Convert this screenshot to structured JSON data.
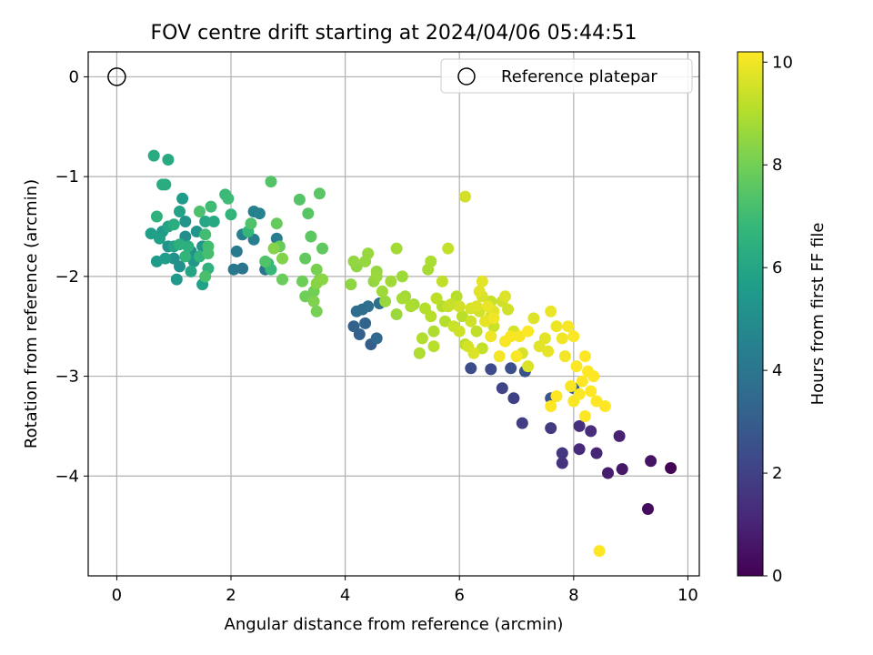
{
  "chart_data": {
    "type": "scatter",
    "title": "FOV centre drift starting at 2024/04/06 05:44:51",
    "xlabel": "Angular distance from reference (arcmin)",
    "ylabel": "Rotation from reference (arcmin)",
    "xlim": [
      -0.5,
      10.2
    ],
    "ylim": [
      -5.0,
      0.25
    ],
    "xticks": [
      0,
      2,
      4,
      6,
      8,
      10
    ],
    "yticks": [
      0,
      -1,
      -2,
      -3,
      -4
    ],
    "grid": true,
    "legend": {
      "placement": "top-right",
      "entries": [
        "Reference platepar"
      ]
    },
    "reference_point": {
      "x": 0,
      "y": 0
    },
    "colorbar": {
      "label": "Hours from first FF file",
      "colormap": "viridis",
      "min": 0,
      "max": 10.2,
      "ticks": [
        0,
        2,
        4,
        6,
        8,
        10
      ]
    },
    "colormap_stops": [
      "#440154",
      "#482878",
      "#3e4989",
      "#31688e",
      "#26828e",
      "#1f9e89",
      "#35b779",
      "#6ece58",
      "#b5de2b",
      "#fde725"
    ],
    "series": [
      {
        "name": "Reference platepar",
        "x": [
          0
        ],
        "y": [
          0
        ]
      },
      {
        "points": [
          [
            9.7,
            -3.92,
            0.1
          ],
          [
            9.3,
            -4.33,
            0.3
          ],
          [
            9.35,
            -3.85,
            0.5
          ],
          [
            8.85,
            -3.93,
            0.6
          ],
          [
            8.6,
            -3.97,
            0.8
          ],
          [
            8.8,
            -3.6,
            1.0
          ],
          [
            8.4,
            -3.77,
            1.1
          ],
          [
            8.1,
            -3.73,
            1.2
          ],
          [
            8.3,
            -3.55,
            1.3
          ],
          [
            8.1,
            -3.5,
            1.4
          ],
          [
            7.8,
            -3.87,
            1.5
          ],
          [
            7.8,
            -3.77,
            1.6
          ],
          [
            7.6,
            -3.52,
            1.8
          ],
          [
            7.1,
            -3.47,
            1.9
          ],
          [
            6.95,
            -3.22,
            2.0
          ],
          [
            6.75,
            -3.12,
            2.1
          ],
          [
            6.55,
            -2.93,
            2.3
          ],
          [
            6.2,
            -2.92,
            2.4
          ],
          [
            6.9,
            -2.92,
            2.5
          ],
          [
            7.15,
            -2.95,
            2.6
          ],
          [
            7.6,
            -3.22,
            2.7
          ],
          [
            8.0,
            -3.12,
            2.9
          ],
          [
            4.45,
            -2.68,
            3.0
          ],
          [
            4.25,
            -2.58,
            3.1
          ],
          [
            4.15,
            -2.5,
            3.2
          ],
          [
            4.35,
            -2.47,
            3.3
          ],
          [
            4.55,
            -2.62,
            3.4
          ],
          [
            4.3,
            -2.33,
            3.5
          ],
          [
            4.2,
            -2.35,
            3.6
          ],
          [
            4.6,
            -2.27,
            3.7
          ],
          [
            4.4,
            -2.3,
            3.8
          ],
          [
            2.6,
            -1.93,
            3.9
          ],
          [
            2.2,
            -1.92,
            4.0
          ],
          [
            2.05,
            -1.93,
            4.1
          ],
          [
            2.1,
            -1.75,
            4.2
          ],
          [
            2.8,
            -1.62,
            4.25
          ],
          [
            2.4,
            -1.63,
            4.35
          ],
          [
            2.2,
            -1.58,
            4.45
          ],
          [
            2.4,
            -1.35,
            4.5
          ],
          [
            2.5,
            -1.37,
            4.55
          ],
          [
            1.2,
            -1.6,
            5.0
          ],
          [
            1.3,
            -1.75,
            5.05
          ],
          [
            1.1,
            -1.9,
            5.1
          ],
          [
            1.0,
            -1.82,
            5.15
          ],
          [
            0.9,
            -1.7,
            5.2
          ],
          [
            1.2,
            -1.45,
            5.25
          ],
          [
            1.4,
            -1.55,
            5.3
          ],
          [
            1.5,
            -1.7,
            5.35
          ],
          [
            1.35,
            -1.85,
            5.4
          ],
          [
            1.05,
            -2.03,
            5.45
          ],
          [
            0.8,
            -1.55,
            5.5
          ],
          [
            0.7,
            -1.85,
            5.55
          ],
          [
            1.15,
            -1.22,
            5.6
          ],
          [
            0.85,
            -1.82,
            5.65
          ],
          [
            0.6,
            -1.57,
            5.7
          ],
          [
            0.75,
            -1.62,
            5.75
          ],
          [
            1.5,
            -2.08,
            5.8
          ],
          [
            1.1,
            -1.35,
            5.85
          ],
          [
            1.0,
            -1.7,
            5.9
          ],
          [
            0.9,
            -1.5,
            5.95
          ],
          [
            1.3,
            -1.95,
            6.0
          ],
          [
            1.55,
            -1.45,
            6.05
          ],
          [
            1.7,
            -1.45,
            6.1
          ],
          [
            0.9,
            -0.83,
            6.15
          ],
          [
            0.65,
            -0.79,
            6.2
          ],
          [
            0.8,
            -1.08,
            6.25
          ],
          [
            0.85,
            -1.08,
            6.3
          ],
          [
            1.0,
            -1.48,
            6.35
          ],
          [
            1.25,
            -1.7,
            6.4
          ],
          [
            1.1,
            -1.68,
            6.45
          ],
          [
            0.7,
            -1.4,
            6.5
          ],
          [
            1.6,
            -1.92,
            6.55
          ],
          [
            1.45,
            -1.8,
            6.6
          ],
          [
            1.2,
            -1.8,
            6.65
          ],
          [
            2.0,
            -1.38,
            6.7
          ],
          [
            2.3,
            -1.55,
            6.75
          ],
          [
            2.65,
            -1.87,
            6.8
          ],
          [
            2.7,
            -1.93,
            6.85
          ],
          [
            1.9,
            -1.18,
            6.9
          ],
          [
            1.95,
            -1.22,
            6.95
          ],
          [
            1.65,
            -1.3,
            7.0
          ],
          [
            1.55,
            -1.58,
            7.05
          ],
          [
            1.6,
            -1.7,
            7.1
          ],
          [
            1.6,
            -1.77,
            7.15
          ],
          [
            1.55,
            -2.0,
            7.2
          ],
          [
            1.45,
            -1.35,
            7.25
          ],
          [
            2.35,
            -1.47,
            7.3
          ],
          [
            2.6,
            -1.85,
            7.35
          ],
          [
            2.7,
            -1.05,
            7.4
          ],
          [
            3.2,
            -1.23,
            7.45
          ],
          [
            3.35,
            -1.37,
            7.5
          ],
          [
            3.55,
            -1.17,
            7.55
          ],
          [
            3.4,
            -1.6,
            7.6
          ],
          [
            3.6,
            -1.72,
            7.65
          ],
          [
            3.3,
            -1.82,
            7.7
          ],
          [
            2.8,
            -1.47,
            7.75
          ],
          [
            2.85,
            -1.7,
            7.8
          ],
          [
            2.9,
            -2.03,
            7.85
          ],
          [
            3.25,
            -2.05,
            7.9
          ],
          [
            3.3,
            -2.2,
            7.95
          ],
          [
            3.45,
            -2.15,
            8.0
          ],
          [
            3.5,
            -2.35,
            8.05
          ],
          [
            3.5,
            -1.93,
            8.1
          ],
          [
            3.55,
            -2.03,
            8.15
          ],
          [
            3.45,
            -2.25,
            8.2
          ],
          [
            2.9,
            -1.82,
            8.25
          ],
          [
            2.75,
            -1.72,
            8.3
          ],
          [
            3.5,
            -2.07,
            8.35
          ],
          [
            3.6,
            -2.03,
            8.4
          ],
          [
            4.1,
            -2.08,
            8.45
          ],
          [
            4.15,
            -1.85,
            8.5
          ],
          [
            4.35,
            -1.85,
            8.55
          ],
          [
            4.4,
            -1.77,
            8.6
          ],
          [
            4.55,
            -2.0,
            8.65
          ],
          [
            4.65,
            -2.15,
            8.7
          ],
          [
            4.8,
            -2.05,
            8.75
          ],
          [
            4.9,
            -1.72,
            8.8
          ],
          [
            5.0,
            -2.22,
            8.85
          ],
          [
            5.15,
            -2.3,
            8.9
          ],
          [
            5.3,
            -2.77,
            8.95
          ],
          [
            5.35,
            -2.62,
            9.0
          ],
          [
            5.4,
            -2.32,
            9.05
          ],
          [
            5.5,
            -2.4,
            9.1
          ],
          [
            5.55,
            -2.7,
            9.15
          ],
          [
            5.6,
            -2.22,
            9.2
          ],
          [
            5.7,
            -2.05,
            9.25
          ],
          [
            5.8,
            -1.72,
            9.3
          ],
          [
            5.85,
            -2.28,
            9.35
          ],
          [
            5.9,
            -2.5,
            9.4
          ],
          [
            6.0,
            -2.55,
            9.45
          ],
          [
            6.1,
            -1.2,
            9.5
          ],
          [
            6.15,
            -2.7,
            9.55
          ],
          [
            6.2,
            -2.32,
            9.6
          ],
          [
            6.25,
            -2.77,
            9.65
          ],
          [
            6.3,
            -2.3,
            9.7
          ],
          [
            6.35,
            -2.15,
            9.75
          ],
          [
            6.4,
            -2.05,
            9.8
          ],
          [
            6.45,
            -2.45,
            9.85
          ],
          [
            6.5,
            -2.3,
            9.9
          ],
          [
            6.55,
            -2.6,
            9.95
          ],
          [
            6.6,
            -2.42,
            10.0
          ],
          [
            6.7,
            -2.8,
            10.05
          ],
          [
            6.8,
            -2.65,
            10.1
          ],
          [
            6.9,
            -2.6,
            10.12
          ],
          [
            7.0,
            -2.8,
            10.15
          ],
          [
            7.2,
            -2.55,
            10.18
          ],
          [
            4.2,
            -1.9,
            8.45
          ],
          [
            4.5,
            -2.05,
            8.5
          ],
          [
            4.55,
            -1.95,
            8.55
          ],
          [
            4.7,
            -2.25,
            8.6
          ],
          [
            4.9,
            -2.38,
            8.65
          ],
          [
            5.0,
            -2.0,
            8.7
          ],
          [
            5.05,
            -2.2,
            8.75
          ],
          [
            5.2,
            -2.28,
            8.8
          ],
          [
            5.45,
            -1.93,
            8.85
          ],
          [
            5.5,
            -1.85,
            8.9
          ],
          [
            5.55,
            -2.55,
            8.95
          ],
          [
            5.7,
            -2.3,
            9.0
          ],
          [
            5.75,
            -2.45,
            9.05
          ],
          [
            5.95,
            -2.2,
            9.1
          ],
          [
            6.05,
            -2.4,
            9.15
          ],
          [
            6.1,
            -2.68,
            9.2
          ],
          [
            6.3,
            -2.55,
            9.25
          ],
          [
            6.4,
            -2.72,
            9.3
          ],
          [
            6.55,
            -2.25,
            9.35
          ],
          [
            6.6,
            -2.5,
            9.4
          ],
          [
            6.75,
            -2.25,
            9.45
          ],
          [
            6.85,
            -2.33,
            9.5
          ],
          [
            6.95,
            -2.55,
            9.55
          ],
          [
            7.1,
            -2.77,
            9.6
          ],
          [
            7.2,
            -2.9,
            9.65
          ],
          [
            7.3,
            -2.42,
            9.7
          ],
          [
            7.4,
            -2.7,
            9.75
          ],
          [
            7.5,
            -2.62,
            9.8
          ],
          [
            7.55,
            -2.75,
            9.85
          ],
          [
            7.6,
            -2.35,
            9.9
          ],
          [
            7.7,
            -2.5,
            9.95
          ],
          [
            7.8,
            -2.62,
            10.0
          ],
          [
            7.85,
            -2.8,
            10.05
          ],
          [
            7.9,
            -2.5,
            10.1
          ],
          [
            7.95,
            -3.1,
            10.12
          ],
          [
            8.0,
            -3.25,
            10.14
          ],
          [
            8.05,
            -2.9,
            10.16
          ],
          [
            8.1,
            -3.18,
            10.18
          ],
          [
            8.15,
            -3.05,
            10.2
          ],
          [
            8.2,
            -2.8,
            10.2
          ],
          [
            8.2,
            -3.4,
            10.2
          ],
          [
            8.25,
            -2.95,
            10.2
          ],
          [
            8.3,
            -3.15,
            10.2
          ],
          [
            8.35,
            -3.0,
            10.2
          ],
          [
            8.4,
            -3.25,
            10.2
          ],
          [
            8.45,
            -4.75,
            10.2
          ],
          [
            8.55,
            -3.3,
            10.2
          ],
          [
            7.6,
            -3.3,
            10.2
          ],
          [
            7.7,
            -3.2,
            10.2
          ],
          [
            8.0,
            -2.6,
            10.15
          ],
          [
            7.05,
            -2.6,
            10.1
          ],
          [
            6.6,
            -2.35,
            9.75
          ],
          [
            6.8,
            -2.2,
            9.7
          ],
          [
            6.4,
            -2.2,
            9.6
          ],
          [
            6.0,
            -2.3,
            9.5
          ],
          [
            5.8,
            -2.3,
            9.3
          ],
          [
            6.2,
            -2.45,
            9.45
          ],
          [
            6.35,
            -2.35,
            9.5
          ],
          [
            6.55,
            -2.4,
            9.55
          ]
        ]
      }
    ]
  }
}
